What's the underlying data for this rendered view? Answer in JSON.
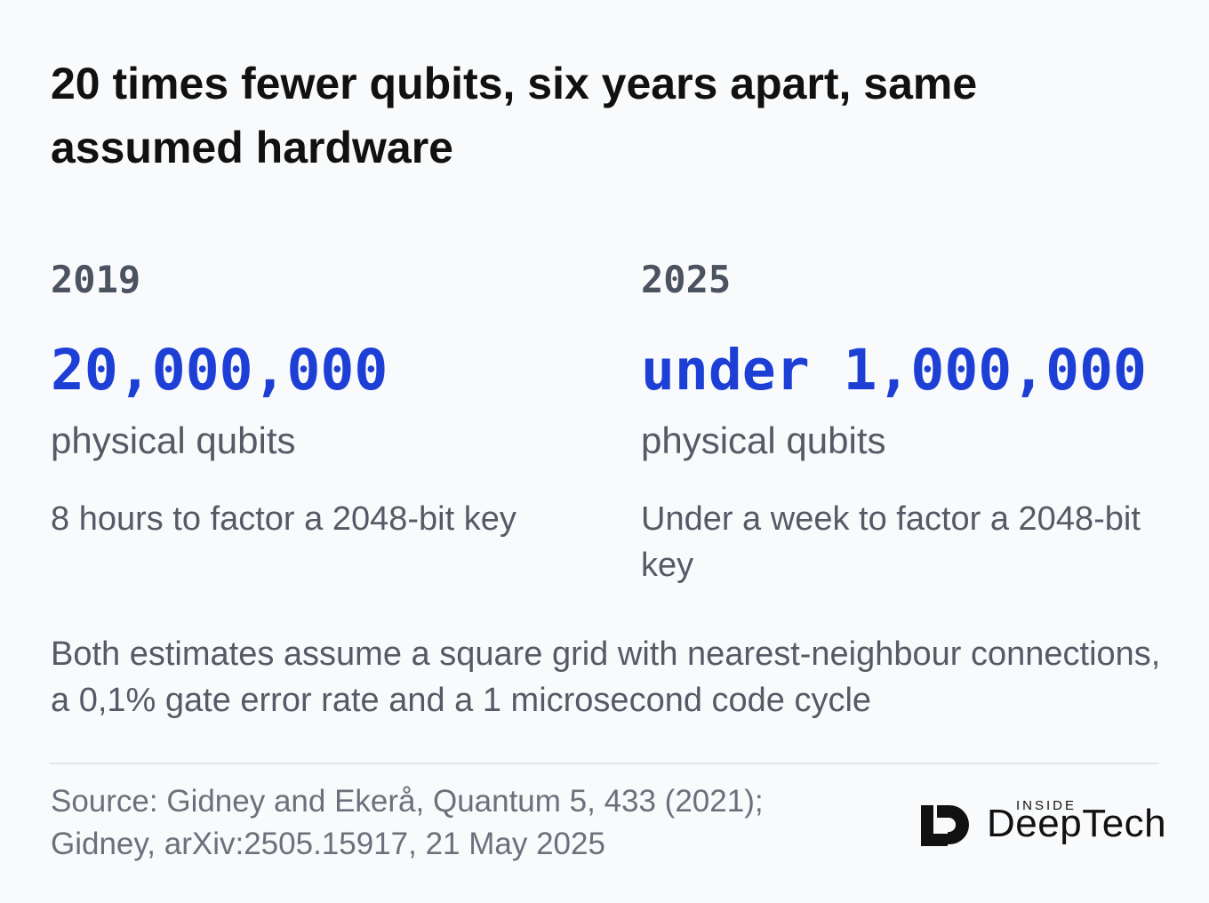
{
  "header": {
    "title": "20 times fewer qubits, six years apart, same assumed hardware"
  },
  "columns": [
    {
      "year": "2019",
      "figure": "20,000,000",
      "unit": "physical qubits",
      "description": "8 hours to factor a 2048-bit key"
    },
    {
      "year": "2025",
      "figure": "under 1,000,000",
      "unit": "physical qubits",
      "description": "Under a week to factor a 2048-bit key"
    }
  ],
  "note": "Both estimates assume a square grid with nearest-neighbour connections, a 0,1% gate error rate and a 1 microsecond code cycle",
  "source": {
    "lines": [
      "Source: Gidney and Ekerå, Quantum 5, 433 (2021);",
      "Gidney, arXiv:2505.15917, 21 May 2025"
    ]
  },
  "logo": {
    "tagline": "INSIDE",
    "name": "DeepTech"
  }
}
